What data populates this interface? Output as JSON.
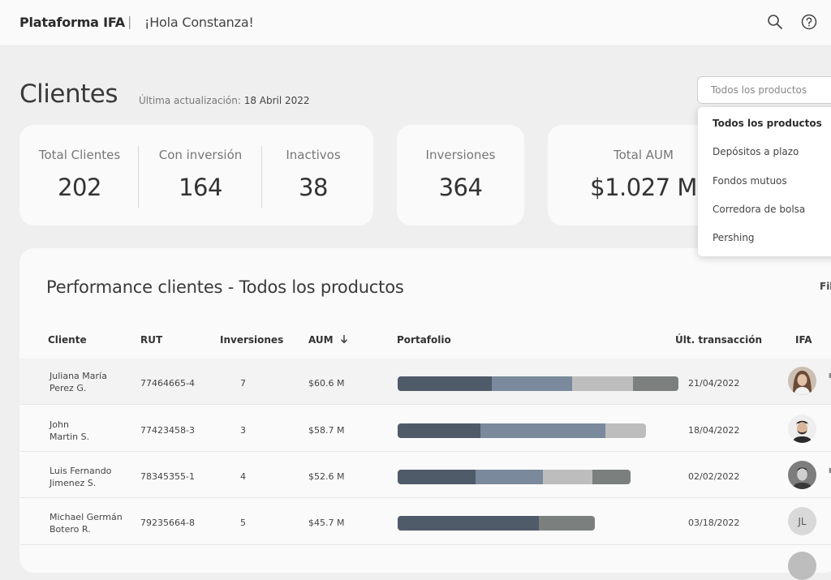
{
  "header": {
    "brand": "Plataforma IFA",
    "divider": "|",
    "greeting": "¡Hola Constanza!",
    "icons": [
      "search-icon",
      "help-icon"
    ]
  },
  "page": {
    "title": "Clientes",
    "updated_label": "Última actualización:",
    "updated_date": "18 Abril 2022"
  },
  "stats": {
    "total_clientes": {
      "label": "Total Clientes",
      "value": "202"
    },
    "con_inversion": {
      "label": "Con inversión",
      "value": "164"
    },
    "inactivos": {
      "label": "Inactivos",
      "value": "38"
    },
    "inversiones": {
      "label": "Inversiones",
      "value": "364"
    },
    "total_aum": {
      "label": "Total AUM",
      "value": "$1.027 M"
    }
  },
  "product_filter": {
    "value": "Todos los productos",
    "options": [
      "Todos los productos",
      "Depósitos a plazo",
      "Fondos mutuos",
      "Corredora de bolsa",
      "Pershing"
    ],
    "selected_index": 0
  },
  "table": {
    "title": "Performance clientes - Todos los productos",
    "filter_label": "Fil",
    "headers": {
      "cliente": "Cliente",
      "rut": "RUT",
      "inversiones": "Inversiones",
      "aum": "AUM",
      "portafolio": "Portafolio",
      "ult_transaccion": "Últ. transacción",
      "ifa": "IFA"
    },
    "sort_icon": "arrow-down-icon",
    "rows": [
      {
        "name1": "Juliana María",
        "name2": "Perez G.",
        "rut": "77464665-4",
        "inversiones": "7",
        "aum": "$60.6 M",
        "fecha": "21/04/2022",
        "ifa_initials": "",
        "avatar": "woman-photo"
      },
      {
        "name1": "John",
        "name2": "Martin S.",
        "rut": "77423458-3",
        "inversiones": "3",
        "aum": "$58.7 M",
        "fecha": "18/04/2022",
        "ifa_initials": "",
        "avatar": "man-beard-photo"
      },
      {
        "name1": "Luis Fernando",
        "name2": "Jimenez S.",
        "rut": "78345355-1",
        "inversiones": "4",
        "aum": "$52.6 M",
        "fecha": "02/02/2022",
        "ifa_initials": "",
        "avatar": "man-photo"
      },
      {
        "name1": "Michael Germán",
        "name2": "Botero R.",
        "rut": "79235664-8",
        "inversiones": "5",
        "aum": "$45.7 M",
        "fecha": "03/18/2022",
        "ifa_initials": "JL",
        "avatar": "initials"
      }
    ],
    "portfolio_colors": [
      "#4f5b69",
      "#7a8a9c",
      "#bdbdbd",
      "#7b7f7e"
    ],
    "portfolios": [
      [
        0.187,
        0.16,
        0.121,
        0.091
      ],
      [
        0.165,
        0.248,
        0.081,
        0.0
      ],
      [
        0.155,
        0.134,
        0.099,
        0.076
      ],
      [
        0.281,
        0.0,
        0.0,
        0.111
      ]
    ]
  }
}
